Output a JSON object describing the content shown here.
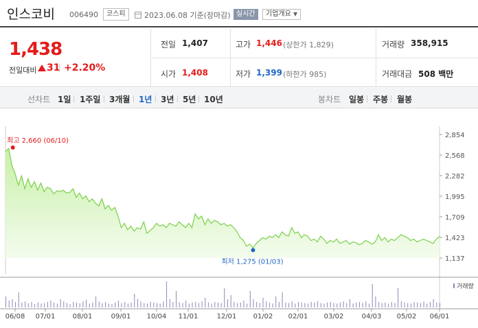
{
  "header": {
    "stock_name": "인스코비",
    "stock_code": "006490",
    "market": "코스피",
    "date_text": "2023.06.08 기준(장마감)",
    "realtime_label": "실시간",
    "overview_label": "기업개요"
  },
  "quote": {
    "price": "1,438",
    "prev_label": "전일대비",
    "change": "31",
    "change_rate": "+2.20%",
    "prev_close_label": "전일",
    "prev_close": "1,407",
    "high_label": "고가",
    "high": "1,446",
    "upper_limit": "(상한가 1,829)",
    "volume_label": "거래량",
    "volume": "358,915",
    "open_label": "시가",
    "open": "1,408",
    "low_label": "저가",
    "low": "1,399",
    "lower_limit": "(하한가 985)",
    "amount_label": "거래대금",
    "amount": "508 백만"
  },
  "tabs": {
    "line_chart_label": "선차트",
    "line_tabs": [
      "1일",
      "1주일",
      "3개월",
      "1년",
      "3년",
      "5년",
      "10년"
    ],
    "active_tab": "1년",
    "candle_chart_label": "봉차트",
    "candle_tabs": [
      "일봉",
      "주봉",
      "월봉"
    ]
  },
  "colors": {
    "up": "#e31b1b",
    "down": "#1f66c6",
    "area_top": "#c8f0a8",
    "line": "#7ad04a",
    "volume_bar": "#8c86b4"
  },
  "chart_data": {
    "type": "area",
    "x_tick_labels": [
      "06/08",
      "07/01",
      "08/01",
      "09/01",
      "10/04",
      "11/01",
      "12/01",
      "01/02",
      "02/01",
      "03/02",
      "04/03",
      "05/02",
      "06/01"
    ],
    "y_tick_labels": [
      "2,854",
      "2,568",
      "2,282",
      "1,995",
      "1,709",
      "1,423",
      "1,137"
    ],
    "ylim": [
      1137,
      2854
    ],
    "max_label": "최고 2,660 (06/10)",
    "min_label": "최저 1,275 (01/03)",
    "volume_legend": "거래량",
    "series": [
      {
        "values": [
          2620,
          2660,
          2420,
          2310,
          2150,
          2280,
          2100,
          2240,
          2120,
          2200,
          2080,
          2180,
          2060,
          2120,
          2100,
          2030,
          2070,
          2060,
          2080,
          2040,
          2050,
          2100,
          1980,
          2040,
          1960,
          2000,
          1920,
          1960,
          1900,
          1860,
          1960,
          1820,
          1870,
          1800,
          1840,
          1720,
          1560,
          1620,
          1530,
          1580,
          1510,
          1560,
          1540,
          1640,
          1480,
          1520,
          1560,
          1620,
          1580,
          1600,
          1560,
          1620,
          1600,
          1580,
          1640,
          1600,
          1560,
          1620,
          1560,
          1750,
          1680,
          1720,
          1600,
          1680,
          1620,
          1660,
          1640,
          1600,
          1620,
          1580,
          1600,
          1560,
          1500,
          1420,
          1380,
          1300,
          1330,
          1275,
          1340,
          1380,
          1420,
          1400,
          1440,
          1420,
          1460,
          1420,
          1500,
          1460,
          1440,
          1560,
          1480,
          1500,
          1420,
          1460,
          1440,
          1380,
          1400,
          1360,
          1440,
          1400,
          1340,
          1380,
          1360,
          1400,
          1340,
          1360,
          1380,
          1330,
          1360,
          1350,
          1320,
          1340,
          1380,
          1360,
          1330,
          1360,
          1460,
          1380,
          1420,
          1360,
          1400,
          1380,
          1420,
          1460,
          1440,
          1420,
          1380,
          1400,
          1360,
          1380,
          1400,
          1380,
          1360,
          1340,
          1400,
          1438
        ]
      },
      {
        "name": "거래량",
        "values": [
          40,
          25,
          30,
          20,
          55,
          18,
          22,
          15,
          20,
          12,
          18,
          14,
          16,
          20,
          25,
          18,
          14,
          30,
          22,
          16,
          12,
          20,
          18,
          15,
          22,
          28,
          14,
          18,
          40,
          22,
          16,
          20,
          14,
          12,
          18,
          25,
          16,
          20,
          14,
          18,
          50,
          30,
          22,
          16,
          14,
          20,
          18,
          16,
          14,
          22,
          95,
          30,
          20,
          60,
          18,
          16,
          25,
          14,
          18,
          20,
          16,
          22,
          35,
          18,
          14,
          20,
          18,
          16,
          70,
          30,
          45,
          20,
          16,
          18,
          25,
          14,
          60,
          30,
          20,
          16,
          35,
          22,
          18,
          14,
          40,
          20,
          55,
          18,
          16,
          22,
          14,
          20,
          18,
          16,
          14,
          20,
          18,
          22,
          16,
          14,
          18,
          20,
          16,
          14,
          18,
          22,
          16,
          30,
          14,
          18,
          20,
          16,
          22,
          14,
          85,
          40,
          20,
          16,
          18,
          14,
          20,
          16,
          70,
          22,
          18,
          16,
          14,
          20,
          18,
          16,
          22,
          14,
          20,
          30,
          18,
          16
        ]
      }
    ]
  }
}
